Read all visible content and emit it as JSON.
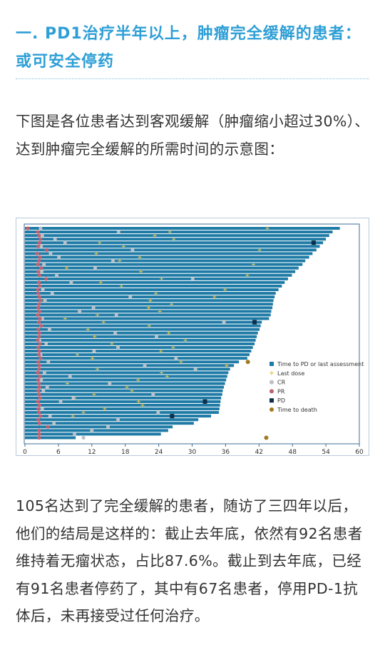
{
  "heading": "一. PD1治疗半年以上，肿瘤完全缓解的患者：或可安全停药",
  "intro": "下图是各位患者达到客观缓解（肿瘤缩小超过30%）、达到肿瘤完全缓解的所需时间的示意图：",
  "body": "105名达到了完全缓解的患者，随访了三四年以后，他们的结局是这样的：截止去年底，依然有92名患者维持着无瘤状态，占比87.6%。截止到去年底，已经有91名患者停药了，其中有67名患者，停用PD-1抗体后，未再接受过任何治疗。",
  "chart_data": {
    "type": "bar",
    "orientation": "horizontal",
    "xlim": [
      0,
      60
    ],
    "x_ticks": [
      "0",
      "6",
      "12",
      "18",
      "24",
      "30",
      "36",
      "42",
      "48",
      "54",
      "60"
    ],
    "legend_position": "right",
    "legend": [
      {
        "label": "Time to PD or last assessment",
        "marker": "bar",
        "color": "#1f7ba6"
      },
      {
        "label": "Last dose",
        "marker": "plus",
        "color": "#e8c84a"
      },
      {
        "label": "CR",
        "marker": "circle",
        "color": "#b9c0c8"
      },
      {
        "label": "PR",
        "marker": "circle",
        "color": "#c06070"
      },
      {
        "label": "PD",
        "marker": "square",
        "color": "#0e2f4a"
      },
      {
        "label": "Time to death",
        "marker": "circle",
        "color": "#a07a20"
      }
    ],
    "bar_values": [
      56.5,
      55.2,
      54.6,
      54.0,
      53.5,
      52.9,
      52.3,
      51.6,
      51.0,
      50.3,
      49.8,
      49.1,
      48.5,
      47.9,
      47.2,
      46.6,
      46.1,
      45.5,
      45.0,
      44.8,
      44.6,
      44.5,
      44.4,
      44.2,
      44.1,
      43.8,
      42.5,
      42.3,
      42.1,
      41.8,
      41.6,
      41.4,
      41.2,
      40.9,
      40.6,
      40.3,
      39.9,
      38.4,
      37.5,
      36.8,
      36.5,
      36.3,
      36.1,
      35.9,
      35.7,
      35.5,
      35.4,
      35.2,
      35.1,
      35.0,
      34.9,
      34.8,
      33.4,
      31.1,
      30.3,
      26.5,
      25.7,
      24.4,
      9.1
    ],
    "pr_times": [
      0.5,
      2.3,
      2.5,
      2.8,
      2.6,
      2.4,
      3.9,
      2.2,
      2.7,
      2.5,
      2.3,
      2.9,
      2.4,
      2.6,
      3.8,
      2.5,
      2.7,
      2.3,
      2.4,
      2.6,
      2.8,
      2.5,
      2.4,
      2.6,
      2.3,
      2.7,
      2.5,
      2.9,
      2.4,
      2.6,
      2.5,
      2.3,
      2.7,
      2.4,
      2.6,
      2.5,
      2.8,
      2.4,
      2.6,
      2.5,
      2.3,
      2.7,
      2.4,
      2.5,
      2.6,
      2.4,
      2.5,
      2.7,
      2.3,
      2.6,
      2.4,
      2.5,
      2.8,
      2.4,
      2.6,
      4.1,
      2.5,
      2.6,
      2.5
    ],
    "cr_times": [
      2.8,
      16.8,
      3.1,
      5.4,
      7.2,
      2.9,
      19.3,
      4.6,
      6.1,
      15.8,
      3.4,
      12.6,
      3.0,
      5.7,
      30.1,
      8.3,
      2.7,
      3.2,
      4.9,
      18.9,
      3.6,
      2.5,
      12.3,
      9.8,
      16.4,
      3.1,
      35.7,
      2.9,
      4.4,
      16.2,
      23.6,
      2.6,
      3.8,
      16.7,
      12.4,
      2.8,
      27.1,
      4.2,
      21.5,
      30.6,
      3.5,
      8.1,
      2.9,
      15.2,
      4.0,
      3.3,
      23.0,
      8.7,
      6.4,
      2.6,
      3.1,
      23.9,
      4.5,
      16.7,
      5.2,
      14.9,
      12.0,
      8.9,
      10.5
    ],
    "last_dose_times": [
      43.5,
      26.0,
      23.3,
      26.7,
      13.4,
      17.7,
      42.1,
      12.8,
      20.6,
      17.0,
      41.0,
      7.5,
      20.8,
      39.9,
      24.5,
      13.6,
      17.3,
      35.9,
      23.5,
      34.0,
      22.5,
      26.3,
      22.2,
      24.2,
      13.0,
      7.2,
      14.1,
      22.3,
      11.3,
      25.8,
      12.5,
      28.8,
      15.6,
      26.6,
      24.4,
      9.4,
      12.1,
      28.0,
      36.2,
      13.0,
      24.5,
      25.5,
      20.3,
      7.6,
      18.3,
      19.2,
      12.4,
      8.9,
      20.4,
      21.1,
      14.3,
      10.5,
      8.6
    ],
    "pd_markers": [
      {
        "row": 4,
        "x": 51.8
      },
      {
        "row": 26,
        "x": 41.2
      },
      {
        "row": 48,
        "x": 32.3
      },
      {
        "row": 52,
        "x": 26.4
      }
    ],
    "death_markers": [
      {
        "row": 37,
        "x": 40.0
      },
      {
        "row": 58,
        "x": 43.3
      }
    ]
  }
}
